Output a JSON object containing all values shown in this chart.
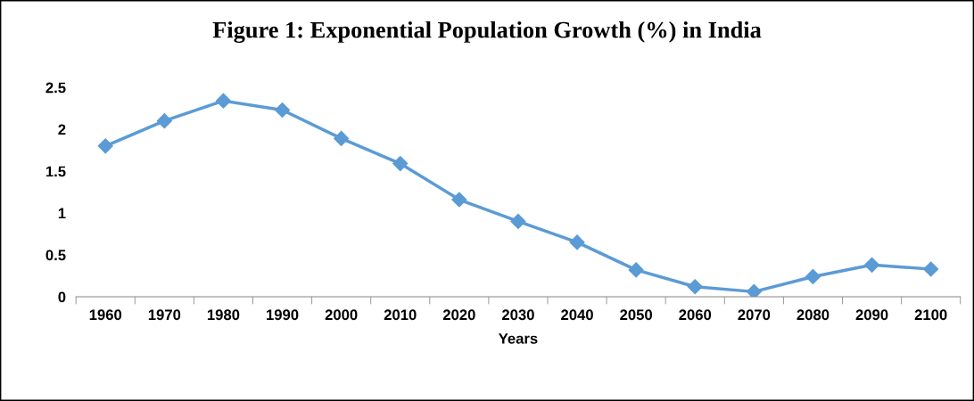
{
  "chart_data": {
    "type": "line",
    "title": "Figure 1: Exponential Population Growth (%) in India",
    "xlabel": "Years",
    "categories": [
      "1960",
      "1970",
      "1980",
      "1990",
      "2000",
      "2010",
      "2020",
      "2030",
      "2040",
      "2050",
      "2060",
      "2070",
      "2080",
      "2090",
      "2100"
    ],
    "series": [
      {
        "color": "#5b9bd5",
        "values": [
          1.8,
          2.1,
          2.34,
          2.23,
          1.89,
          1.59,
          1.16,
          0.9,
          0.65,
          0.32,
          0.12,
          0.06,
          0.24,
          0.38,
          0.33
        ]
      }
    ],
    "ylim": [
      0,
      2.5
    ],
    "yticks": [
      0,
      0.5,
      1,
      1.5,
      2,
      2.5
    ],
    "marker": "diamond",
    "line_style": "solid",
    "grid": false,
    "legend": false
  }
}
